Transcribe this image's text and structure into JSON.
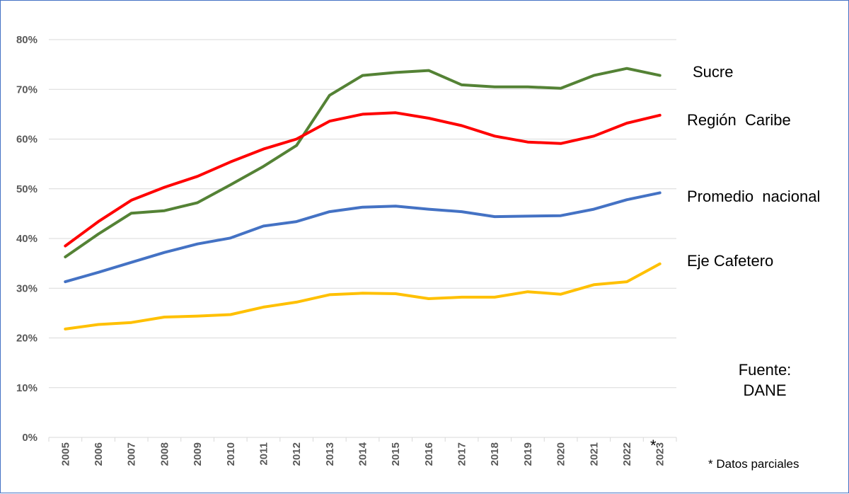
{
  "chart_data": {
    "type": "line",
    "x": [
      "2005",
      "2006",
      "2007",
      "2008",
      "2009",
      "2010",
      "2011",
      "2012",
      "2013",
      "2014",
      "2015",
      "2016",
      "2017",
      "2018",
      "2019",
      "2020",
      "2021",
      "2022",
      "2023"
    ],
    "ylim": [
      0,
      80
    ],
    "yticks": [
      "0%",
      "10%",
      "20%",
      "30%",
      "40%",
      "50%",
      "60%",
      "70%",
      "80%"
    ],
    "grid": true,
    "series": [
      {
        "name": "Sucre",
        "color": "#548235",
        "values": [
          36.3,
          40.9,
          45.1,
          45.6,
          47.2,
          50.8,
          54.5,
          58.7,
          68.8,
          72.8,
          73.4,
          73.8,
          70.9,
          70.5,
          70.5,
          70.2,
          72.8,
          74.2,
          72.8
        ]
      },
      {
        "name": "Región  Caribe",
        "color": "#ff0000",
        "values": [
          38.5,
          43.4,
          47.7,
          50.3,
          52.5,
          55.4,
          58.0,
          60.0,
          63.6,
          65.0,
          65.3,
          64.2,
          62.7,
          60.6,
          59.4,
          59.1,
          60.6,
          63.2,
          64.8
        ]
      },
      {
        "name": "Promedio  nacional",
        "color": "#4472c4",
        "values": [
          31.3,
          33.2,
          35.2,
          37.2,
          38.9,
          40.1,
          42.5,
          43.4,
          45.4,
          46.3,
          46.5,
          45.9,
          45.4,
          44.4,
          44.5,
          44.6,
          45.9,
          47.8,
          49.2
        ]
      },
      {
        "name": "Eje Cafetero",
        "color": "#ffc000",
        "values": [
          21.8,
          22.7,
          23.1,
          24.2,
          24.4,
          24.7,
          26.2,
          27.2,
          28.7,
          29.0,
          28.9,
          27.9,
          28.2,
          28.2,
          29.3,
          28.8,
          30.7,
          31.3,
          34.9
        ]
      }
    ],
    "annotations": {
      "asterisk": "*",
      "partial_note": "* Datos parciales",
      "source_line1": "Fuente:",
      "source_line2": "DANE"
    }
  }
}
